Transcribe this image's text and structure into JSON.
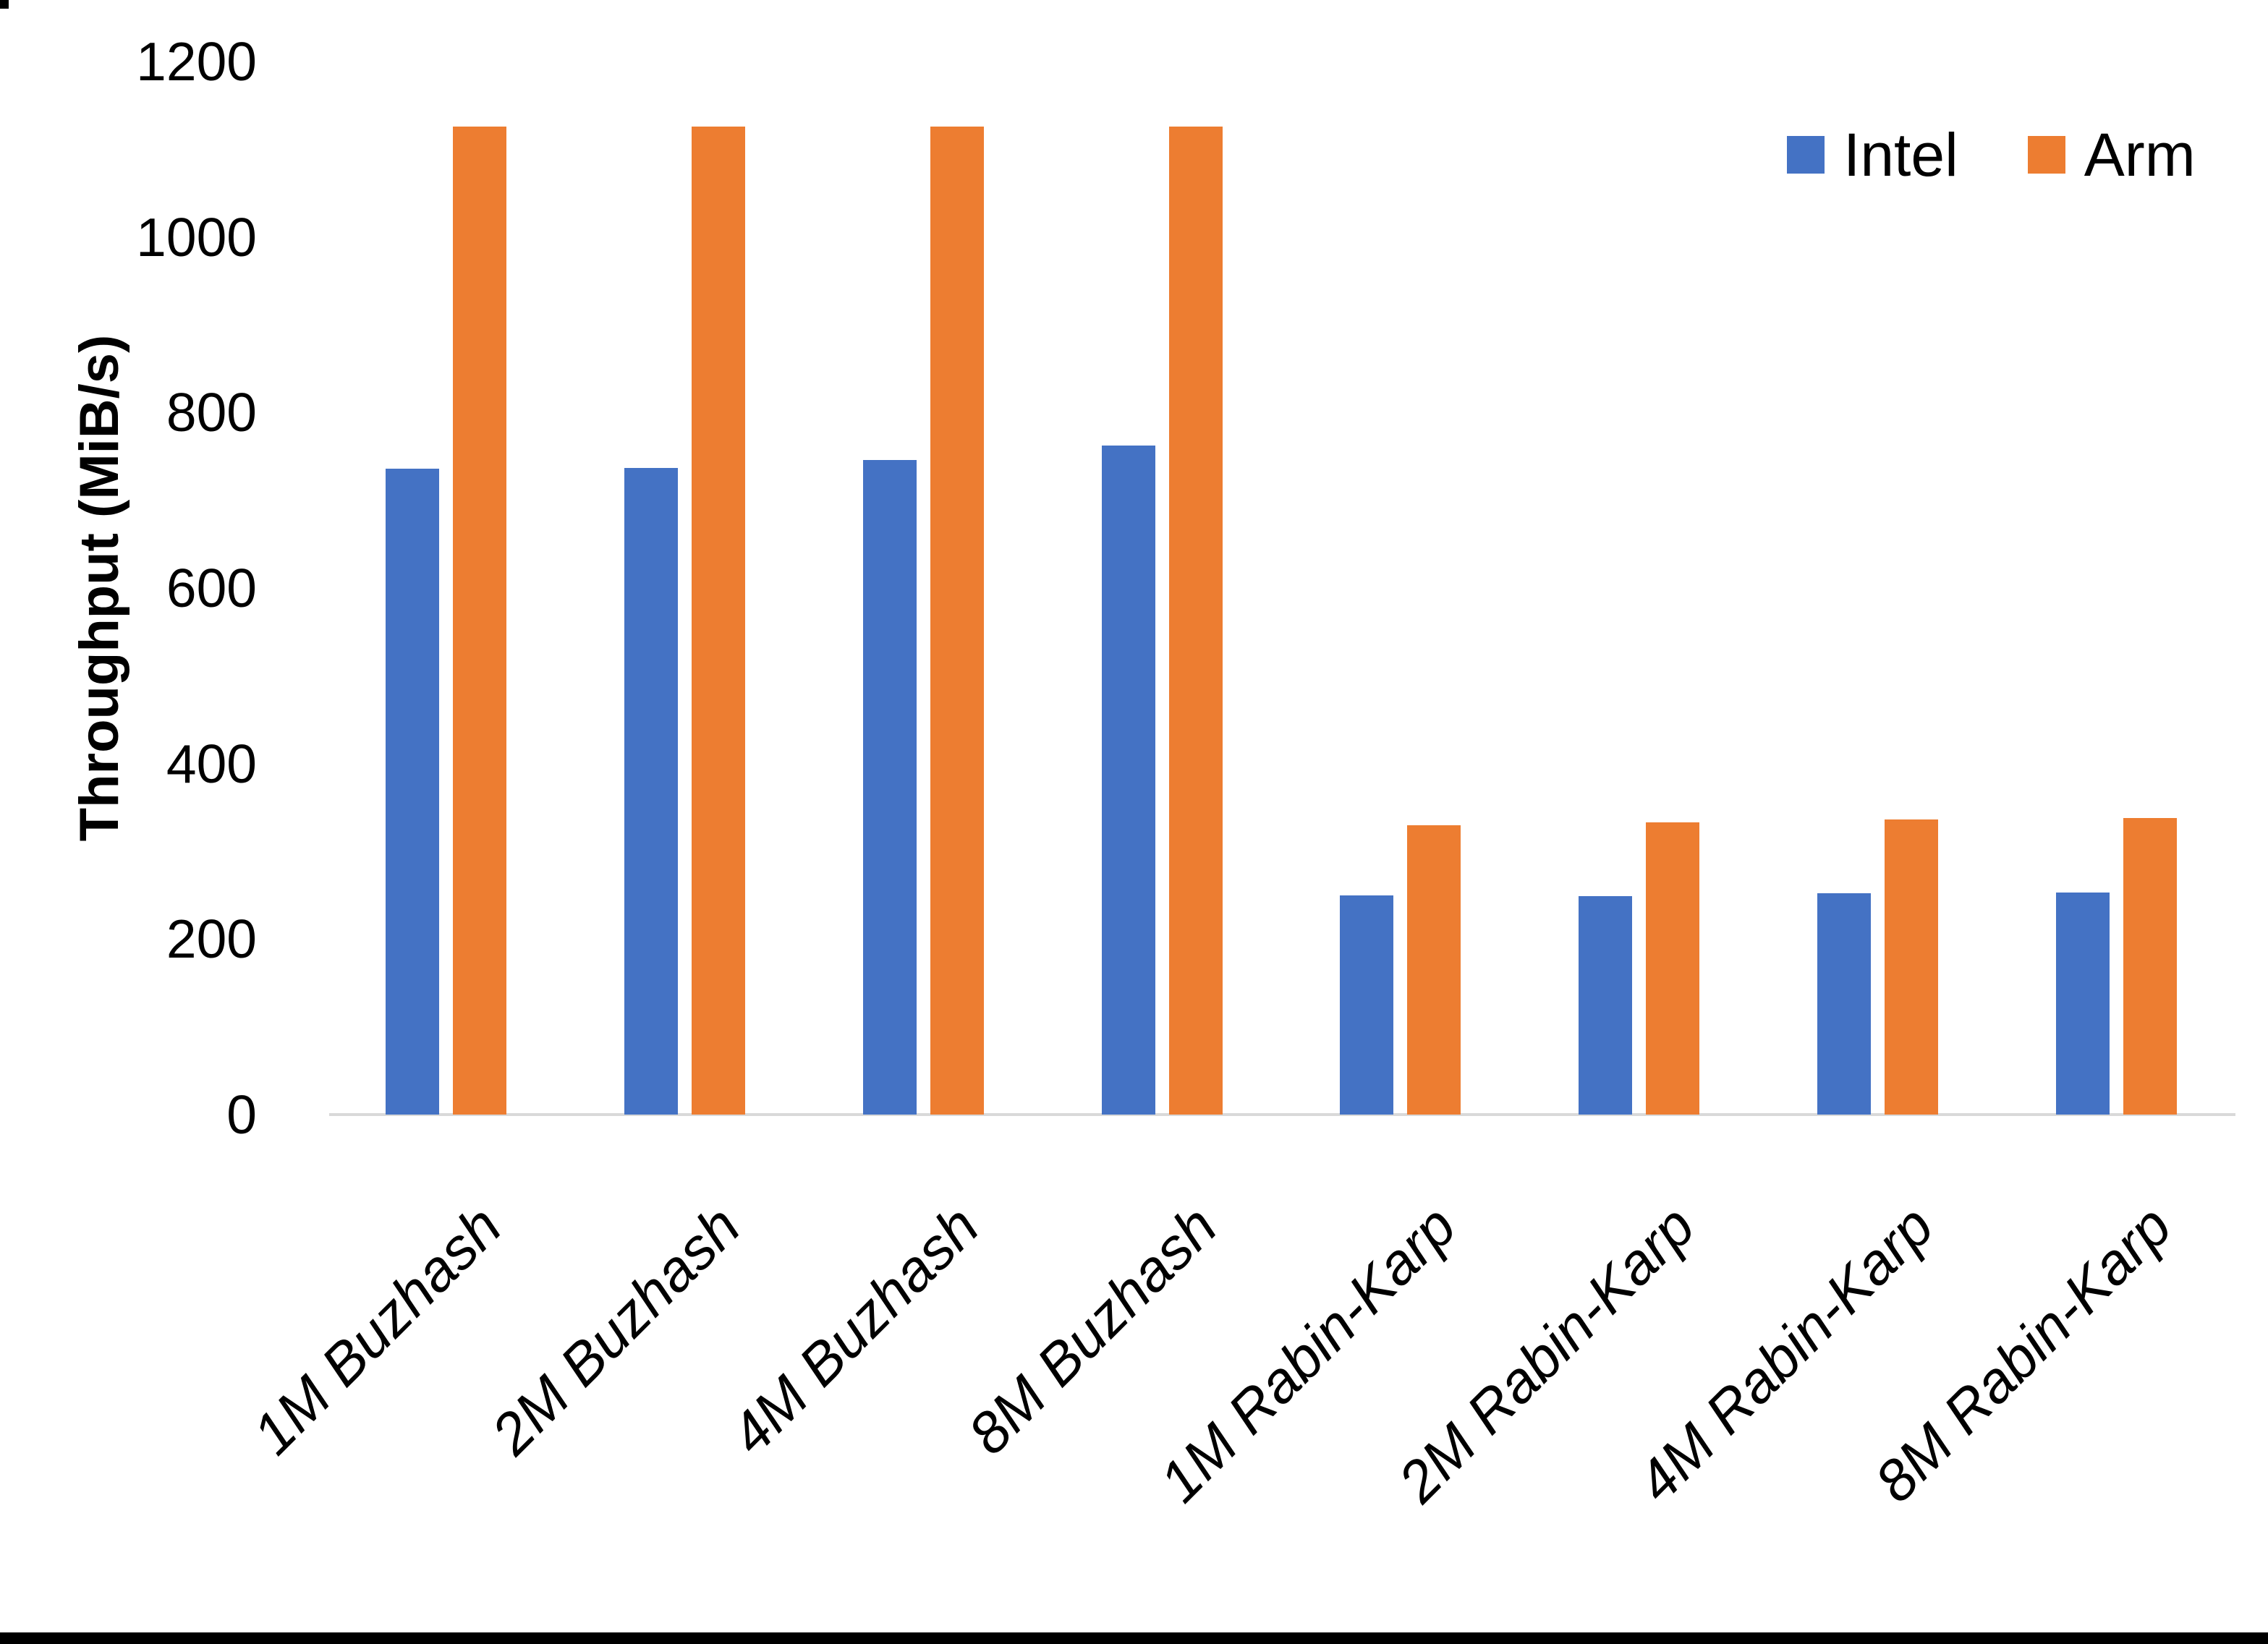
{
  "chart_data": {
    "type": "bar",
    "title": "",
    "ylabel": "Throughput (MiB/s)",
    "xlabel": "",
    "ylim": [
      0,
      1200
    ],
    "y_ticks": [
      0,
      200,
      400,
      600,
      800,
      1000,
      1200
    ],
    "grid": false,
    "legend_position": "top-right",
    "categories": [
      "1M Buzhash",
      "2M Buzhash",
      "4M Buzhash",
      "8M Buzhash",
      "1M Rabin-Karp",
      "2M Rabin-Karp",
      "4M Rabin-Karp",
      "8M Rabin-Karp"
    ],
    "series": [
      {
        "name": "Intel",
        "color": "#4472C4",
        "values": [
          736,
          737,
          746,
          762,
          250,
          249,
          252,
          253
        ]
      },
      {
        "name": "Arm",
        "color": "#ED7D31",
        "values": [
          1126,
          1126,
          1126,
          1126,
          330,
          333,
          336,
          338
        ]
      }
    ]
  },
  "legend": {
    "items": [
      {
        "label": "Intel",
        "color": "#4472C4"
      },
      {
        "label": "Arm",
        "color": "#ED7D31"
      }
    ]
  },
  "colors": {
    "axis_line": "#d9d9d9",
    "text": "#000000",
    "background": "#ffffff"
  }
}
